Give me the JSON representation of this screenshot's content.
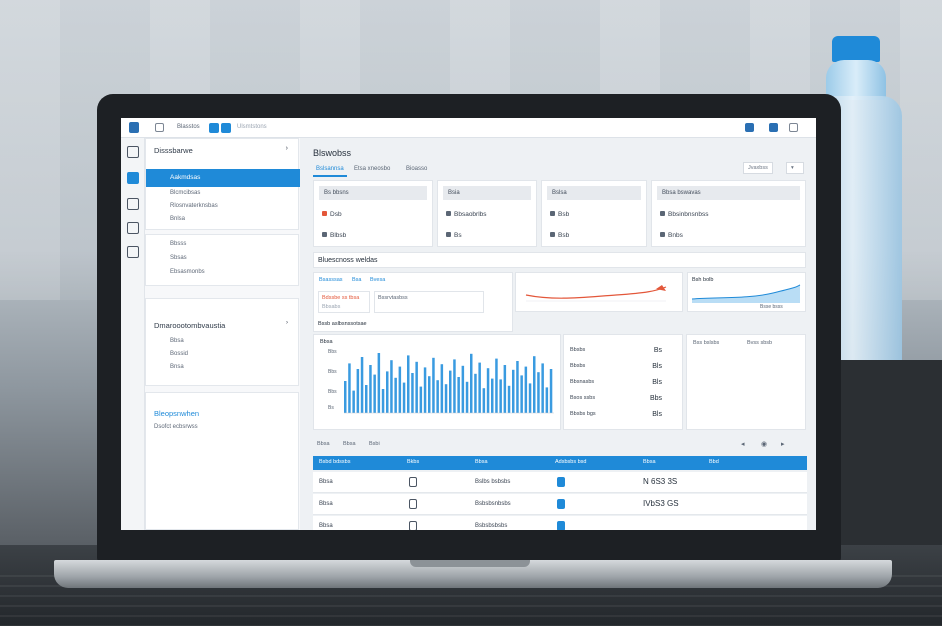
{
  "topbar": {
    "breadcrumb": "Blasstos",
    "subtitle": "Ulsmtstons"
  },
  "sidebar": {
    "section1_title": "Disssbarwe",
    "items": [
      {
        "label": "Aakmdsas"
      },
      {
        "label": "Blcmcibsas"
      },
      {
        "label": "Rlosnvaterknsbas"
      },
      {
        "label": "Bnlsa"
      }
    ],
    "section2_items": [
      {
        "label": "Bbsss"
      },
      {
        "label": "Sbsas"
      },
      {
        "label": "Ebsasmonbs"
      }
    ],
    "section3_title": "Dmaroootombvaustia",
    "section3_items": [
      {
        "label": "Bbsa"
      },
      {
        "label": "Bossid"
      },
      {
        "label": "Bnsa"
      }
    ],
    "section4_title": "Bleopsnwhen",
    "section4_sub": "Dsofct ecbsrwss"
  },
  "main": {
    "title": "Blswobss",
    "tabs": [
      {
        "label": "Bslsannsa"
      },
      {
        "label": "Etsa xneosbo"
      },
      {
        "label": "Bioasso"
      }
    ],
    "filter": "Jvaxbss",
    "kpis": [
      {
        "title": "Bs bbsns",
        "row1": "Dsb",
        "row2": "Blbsb"
      },
      {
        "title": "Bsia",
        "row1": "Bbsaobrlbs",
        "row2": "Bs"
      },
      {
        "title": "Bslsa",
        "row1": "Bsb",
        "row2": "Bsb"
      },
      {
        "title": "Bbsa bswavas",
        "row1": "Bbsinbnsnbss",
        "row2": "Bnbs"
      }
    ],
    "section_title": "Bluescnoss weldas",
    "chart_tabs": [
      {
        "label": "Bsasssas"
      },
      {
        "label": "Bsa"
      },
      {
        "label": "Bvesa"
      }
    ],
    "mini_cards": [
      {
        "title": "Bdssbe ss tbsa",
        "sub": "Bbsabs"
      },
      {
        "title": "Bssrvtasbss",
        "sub": ""
      },
      {
        "title": "Bssb aslbsnssotsae",
        "sub": ""
      },
      {
        "title": "Bsh bolb",
        "sub": "Bsse bsss"
      }
    ],
    "bar_title": "Bnsa bsb sbosnaisbs",
    "bar_legend": "Bbsa",
    "bar_y": [
      "Bbs",
      "Bbs",
      "Bbs",
      "Bs"
    ],
    "stats_list": [
      {
        "label": "Bbsbs",
        "value": "Bs"
      },
      {
        "label": "Bbsbs",
        "value": "Bls"
      },
      {
        "label": "Bbsnasbs",
        "value": "Bls"
      },
      {
        "label": "Bsos ssbs",
        "value": "Bbs"
      },
      {
        "label": "Bbsbs bgs",
        "value": "Bls"
      }
    ],
    "right_panel": {
      "a": "Bss bslsbs",
      "b": "Bvss sbsb"
    },
    "table": {
      "toolbar": [
        "Bbsa",
        "Bbsa",
        "Bsbi"
      ],
      "headers": [
        "Bsbd bdssbs",
        "Bkbs",
        "Bbsa",
        "Adsbsbs bsd",
        "Bbsa",
        "Bbd"
      ],
      "rows": [
        {
          "c1": "Bbsa",
          "c3": "Bslbs bsbsbs",
          "c5": "N 6S3 3S"
        },
        {
          "c1": "Bbsa",
          "c3": "Bsbsbsnbsbs",
          "c5": "IVbS3 GS"
        },
        {
          "c1": "Bbsa",
          "c3": "Bsbsbsbsbs",
          "c5": ""
        }
      ]
    }
  },
  "chart_data": {
    "type": "bar",
    "values": [
      40,
      62,
      28,
      55,
      70,
      35,
      60,
      48,
      75,
      30,
      52,
      66,
      44,
      58,
      38,
      72,
      50,
      64,
      33,
      57,
      46,
      69,
      41,
      61,
      36,
      53,
      67,
      45,
      59,
      39,
      74,
      49,
      63,
      31,
      56,
      43,
      68,
      42,
      60,
      34,
      54,
      65,
      47,
      58,
      37,
      71,
      51,
      62,
      32,
      55
    ]
  },
  "colors": {
    "accent": "#1f8ad8",
    "bars": "#3a9be0",
    "spark_red": "#e3573a"
  }
}
